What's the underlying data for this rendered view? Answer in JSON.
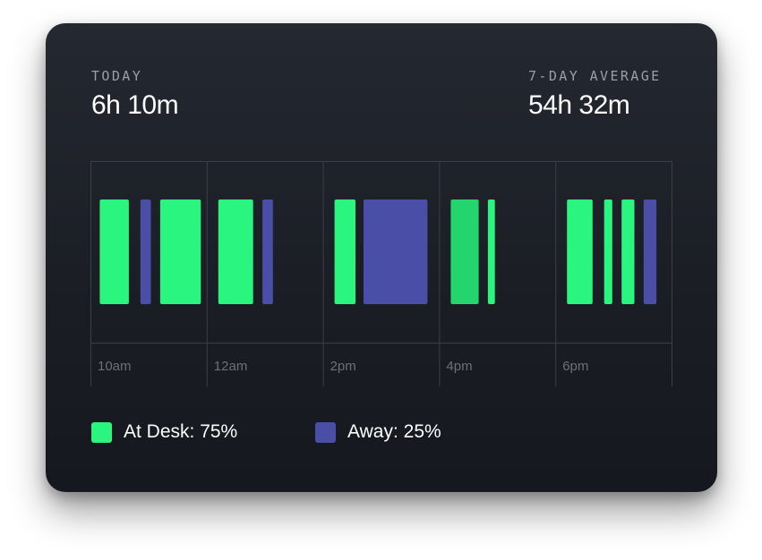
{
  "today": {
    "label": "TODAY",
    "value": "6h 10m"
  },
  "average": {
    "label": "7-DAY AVERAGE",
    "value": "54h 32m"
  },
  "colors": {
    "at_desk": "#2af57f",
    "at_desk_dim": "#23d56c",
    "away": "#4b4ea6",
    "grid": "#3a3e45"
  },
  "chart_data": {
    "type": "bar",
    "x_ticks": [
      "10am",
      "12am",
      "2pm",
      "4pm",
      "6pm"
    ],
    "segments": [
      {
        "status": "at_desk",
        "start": 0.08,
        "end": 0.33
      },
      {
        "status": "away",
        "start": 0.43,
        "end": 0.52
      },
      {
        "status": "at_desk",
        "start": 0.6,
        "end": 0.95
      },
      {
        "status": "at_desk",
        "start": 1.1,
        "end": 1.4
      },
      {
        "status": "away",
        "start": 1.48,
        "end": 1.57
      },
      {
        "status": "at_desk",
        "start": 2.1,
        "end": 2.28
      },
      {
        "status": "away",
        "start": 2.35,
        "end": 2.9
      },
      {
        "status": "at_desk_dim",
        "start": 3.1,
        "end": 3.34
      },
      {
        "status": "at_desk",
        "start": 3.42,
        "end": 3.48
      },
      {
        "status": "at_desk",
        "start": 4.1,
        "end": 4.32
      },
      {
        "status": "at_desk",
        "start": 4.42,
        "end": 4.49
      },
      {
        "status": "at_desk",
        "start": 4.57,
        "end": 4.68
      },
      {
        "status": "away",
        "start": 4.76,
        "end": 4.87
      }
    ],
    "legend": [
      {
        "name": "At Desk",
        "label": "At Desk: 75%",
        "value": 75,
        "color": "#2af57f"
      },
      {
        "name": "Away",
        "label": "Away: 25%",
        "value": 25,
        "color": "#4b4ea6"
      }
    ]
  }
}
